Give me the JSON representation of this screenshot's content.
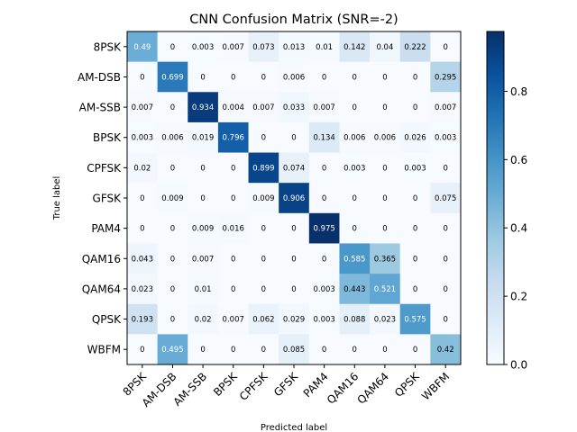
{
  "chart_data": {
    "type": "heatmap",
    "title": "CNN Confusion Matrix (SNR=-2)",
    "xlabel": "Predicted label",
    "ylabel": "True label",
    "labels": [
      "8PSK",
      "AM-DSB",
      "AM-SSB",
      "BPSK",
      "CPFSK",
      "GFSK",
      "PAM4",
      "QAM16",
      "QAM64",
      "QPSK",
      "WBFM"
    ],
    "matrix": [
      [
        0.49,
        0.0,
        0.003,
        0.007,
        0.073,
        0.013,
        0.01,
        0.142,
        0.04,
        0.222,
        0.0
      ],
      [
        0.0,
        0.699,
        0.0,
        0.0,
        0.0,
        0.006,
        0.0,
        0.0,
        0.0,
        0.0,
        0.295
      ],
      [
        0.007,
        0.0,
        0.934,
        0.004,
        0.007,
        0.033,
        0.007,
        0.0,
        0.0,
        0.0,
        0.007
      ],
      [
        0.003,
        0.006,
        0.019,
        0.796,
        0.0,
        0.0,
        0.134,
        0.006,
        0.006,
        0.026,
        0.003
      ],
      [
        0.02,
        0.0,
        0.0,
        0.0,
        0.899,
        0.074,
        0.0,
        0.003,
        0.0,
        0.003,
        0.0
      ],
      [
        0.0,
        0.009,
        0.0,
        0.0,
        0.009,
        0.906,
        0.0,
        0.0,
        0.0,
        0.0,
        0.075
      ],
      [
        0.0,
        0.0,
        0.009,
        0.016,
        0.0,
        0.0,
        0.975,
        0.0,
        0.0,
        0.0,
        0.0
      ],
      [
        0.043,
        0.0,
        0.007,
        0.0,
        0.0,
        0.0,
        0.0,
        0.585,
        0.365,
        0.0,
        0.0
      ],
      [
        0.023,
        0.0,
        0.01,
        0.0,
        0.0,
        0.0,
        0.003,
        0.443,
        0.521,
        0.0,
        0.0
      ],
      [
        0.193,
        0.0,
        0.02,
        0.007,
        0.062,
        0.029,
        0.003,
        0.088,
        0.023,
        0.575,
        0.0
      ],
      [
        0.0,
        0.495,
        0.0,
        0.0,
        0.0,
        0.085,
        0.0,
        0.0,
        0.0,
        0.0,
        0.42
      ]
    ],
    "colormap": "Blues",
    "vmin": 0.0,
    "vmax": 0.975,
    "colorbar_ticks": [
      "0.0",
      "0.2",
      "0.4",
      "0.6",
      "0.8"
    ],
    "colorbar_tick_values": [
      0.0,
      0.2,
      0.4,
      0.6,
      0.8
    ],
    "grid": false,
    "colorbar_position": "right"
  }
}
